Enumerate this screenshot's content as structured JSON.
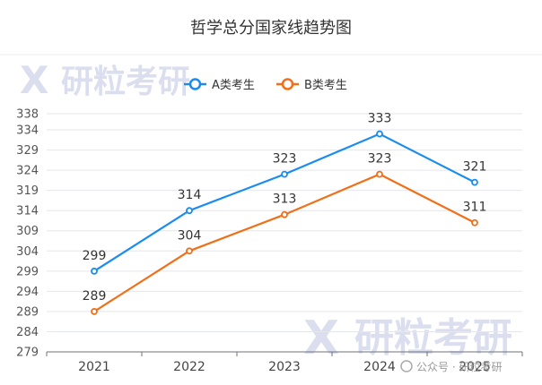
{
  "chart_data": {
    "type": "line",
    "title": "哲学总分国家线趋势图",
    "categories": [
      "2021",
      "2022",
      "2023",
      "2024",
      "2025"
    ],
    "series": [
      {
        "name": "A类考生",
        "color": "#1a8cf0",
        "values": [
          299,
          314,
          323,
          333,
          321
        ]
      },
      {
        "name": "B类考生",
        "color": "#f07019",
        "values": [
          289,
          304,
          313,
          323,
          311
        ]
      }
    ],
    "y_ticks": [
      279,
      284,
      289,
      294,
      299,
      304,
      309,
      314,
      319,
      324,
      329,
      334,
      338
    ],
    "ylim": [
      279,
      338
    ],
    "legend_position": "top-center",
    "grid": true
  },
  "watermark": {
    "brand_text": "研粒考研",
    "footer_text": "公众号 · 研粒考研"
  }
}
